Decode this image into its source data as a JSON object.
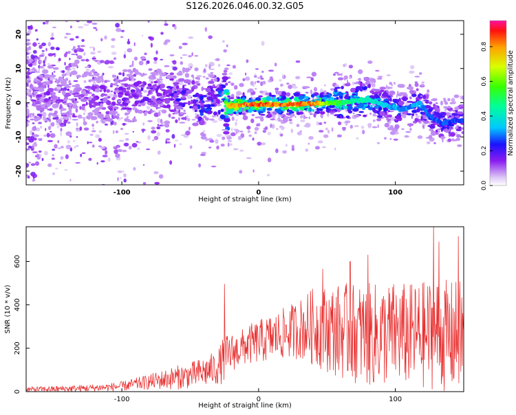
{
  "figure_title": "S126.2026.046.00.32.G05",
  "chart_data": [
    {
      "type": "heatmap",
      "title": "S126.2026.046.00.32.G05",
      "xlabel": "Height of straight line (km)",
      "ylabel": "Frequency (Hz)",
      "xlim": [
        -170,
        150
      ],
      "ylim": [
        -24,
        24
      ],
      "x_ticks": [
        -100,
        0,
        100
      ],
      "y_ticks": [
        20,
        10,
        0,
        -10,
        -20
      ],
      "x_tick_labels": [
        "-100",
        "0",
        "100"
      ],
      "y_tick_labels": [
        "20",
        "10",
        "0",
        "-10",
        "-20"
      ],
      "colorbar": {
        "label": "Normalized spectral amplitude",
        "range": [
          0.0,
          0.95
        ],
        "ticks": [
          0.0,
          0.2,
          0.4,
          0.6,
          0.8
        ],
        "tick_labels": [
          "0.0",
          "0.2",
          "0.4",
          "0.6",
          "0.8"
        ]
      },
      "ridge": {
        "x": [
          -130,
          -110,
          -90,
          -70,
          -50,
          -40,
          -32,
          -28,
          -22,
          -10,
          0,
          20,
          40,
          60,
          80,
          95,
          105,
          118,
          125,
          135,
          150
        ],
        "freq": [
          2,
          1,
          2,
          3,
          1,
          -2,
          2,
          1,
          -1,
          -0.5,
          -0.5,
          -0.5,
          -0.2,
          0,
          1,
          -1,
          -2,
          0,
          -4,
          -6,
          -5
        ],
        "amplitude": [
          0.18,
          0.22,
          0.22,
          0.25,
          0.3,
          0.35,
          0.32,
          0.4,
          0.85,
          0.9,
          0.95,
          0.9,
          0.88,
          0.55,
          0.45,
          0.38,
          0.32,
          0.36,
          0.3,
          0.3,
          0.28
        ]
      }
    },
    {
      "type": "line",
      "xlabel": "Height of straight line (km)",
      "ylabel": "SNR (10 * v/v)",
      "xlim": [
        -170,
        150
      ],
      "ylim": [
        0,
        760
      ],
      "x_ticks": [
        -100,
        0,
        100
      ],
      "y_ticks": [
        0,
        200,
        400,
        600
      ],
      "x_tick_labels": [
        "-100",
        "0",
        "100"
      ],
      "y_tick_labels": [
        "0",
        "200",
        "400",
        "600"
      ],
      "series": [
        {
          "name": "SNR",
          "color": "#e83030",
          "x": [
            -170,
            -150,
            -130,
            -110,
            -100,
            -90,
            -80,
            -70,
            -60,
            -50,
            -40,
            -30,
            -25,
            -20,
            -15,
            -10,
            0,
            10,
            20,
            30,
            40,
            50,
            60,
            70,
            80,
            90,
            100,
            110,
            120,
            130,
            140,
            150
          ],
          "mean": [
            10,
            12,
            15,
            20,
            25,
            35,
            45,
            55,
            65,
            75,
            90,
            110,
            150,
            180,
            190,
            210,
            230,
            250,
            270,
            290,
            300,
            290,
            280,
            270,
            260,
            260,
            270,
            260,
            260,
            270,
            250,
            260
          ],
          "spread": [
            12,
            14,
            16,
            18,
            22,
            28,
            35,
            45,
            55,
            60,
            70,
            80,
            110,
            90,
            80,
            90,
            100,
            110,
            120,
            140,
            180,
            200,
            220,
            230,
            240,
            240,
            240,
            240,
            250,
            260,
            260,
            260
          ],
          "peaks": [
            {
              "x": -25,
              "y": 495
            },
            {
              "x": 47,
              "y": 565
            },
            {
              "x": 67,
              "y": 600
            },
            {
              "x": 80,
              "y": 630
            },
            {
              "x": 128,
              "y": 760
            },
            {
              "x": 132,
              "y": 690
            },
            {
              "x": 146,
              "y": 715
            }
          ]
        }
      ]
    }
  ]
}
